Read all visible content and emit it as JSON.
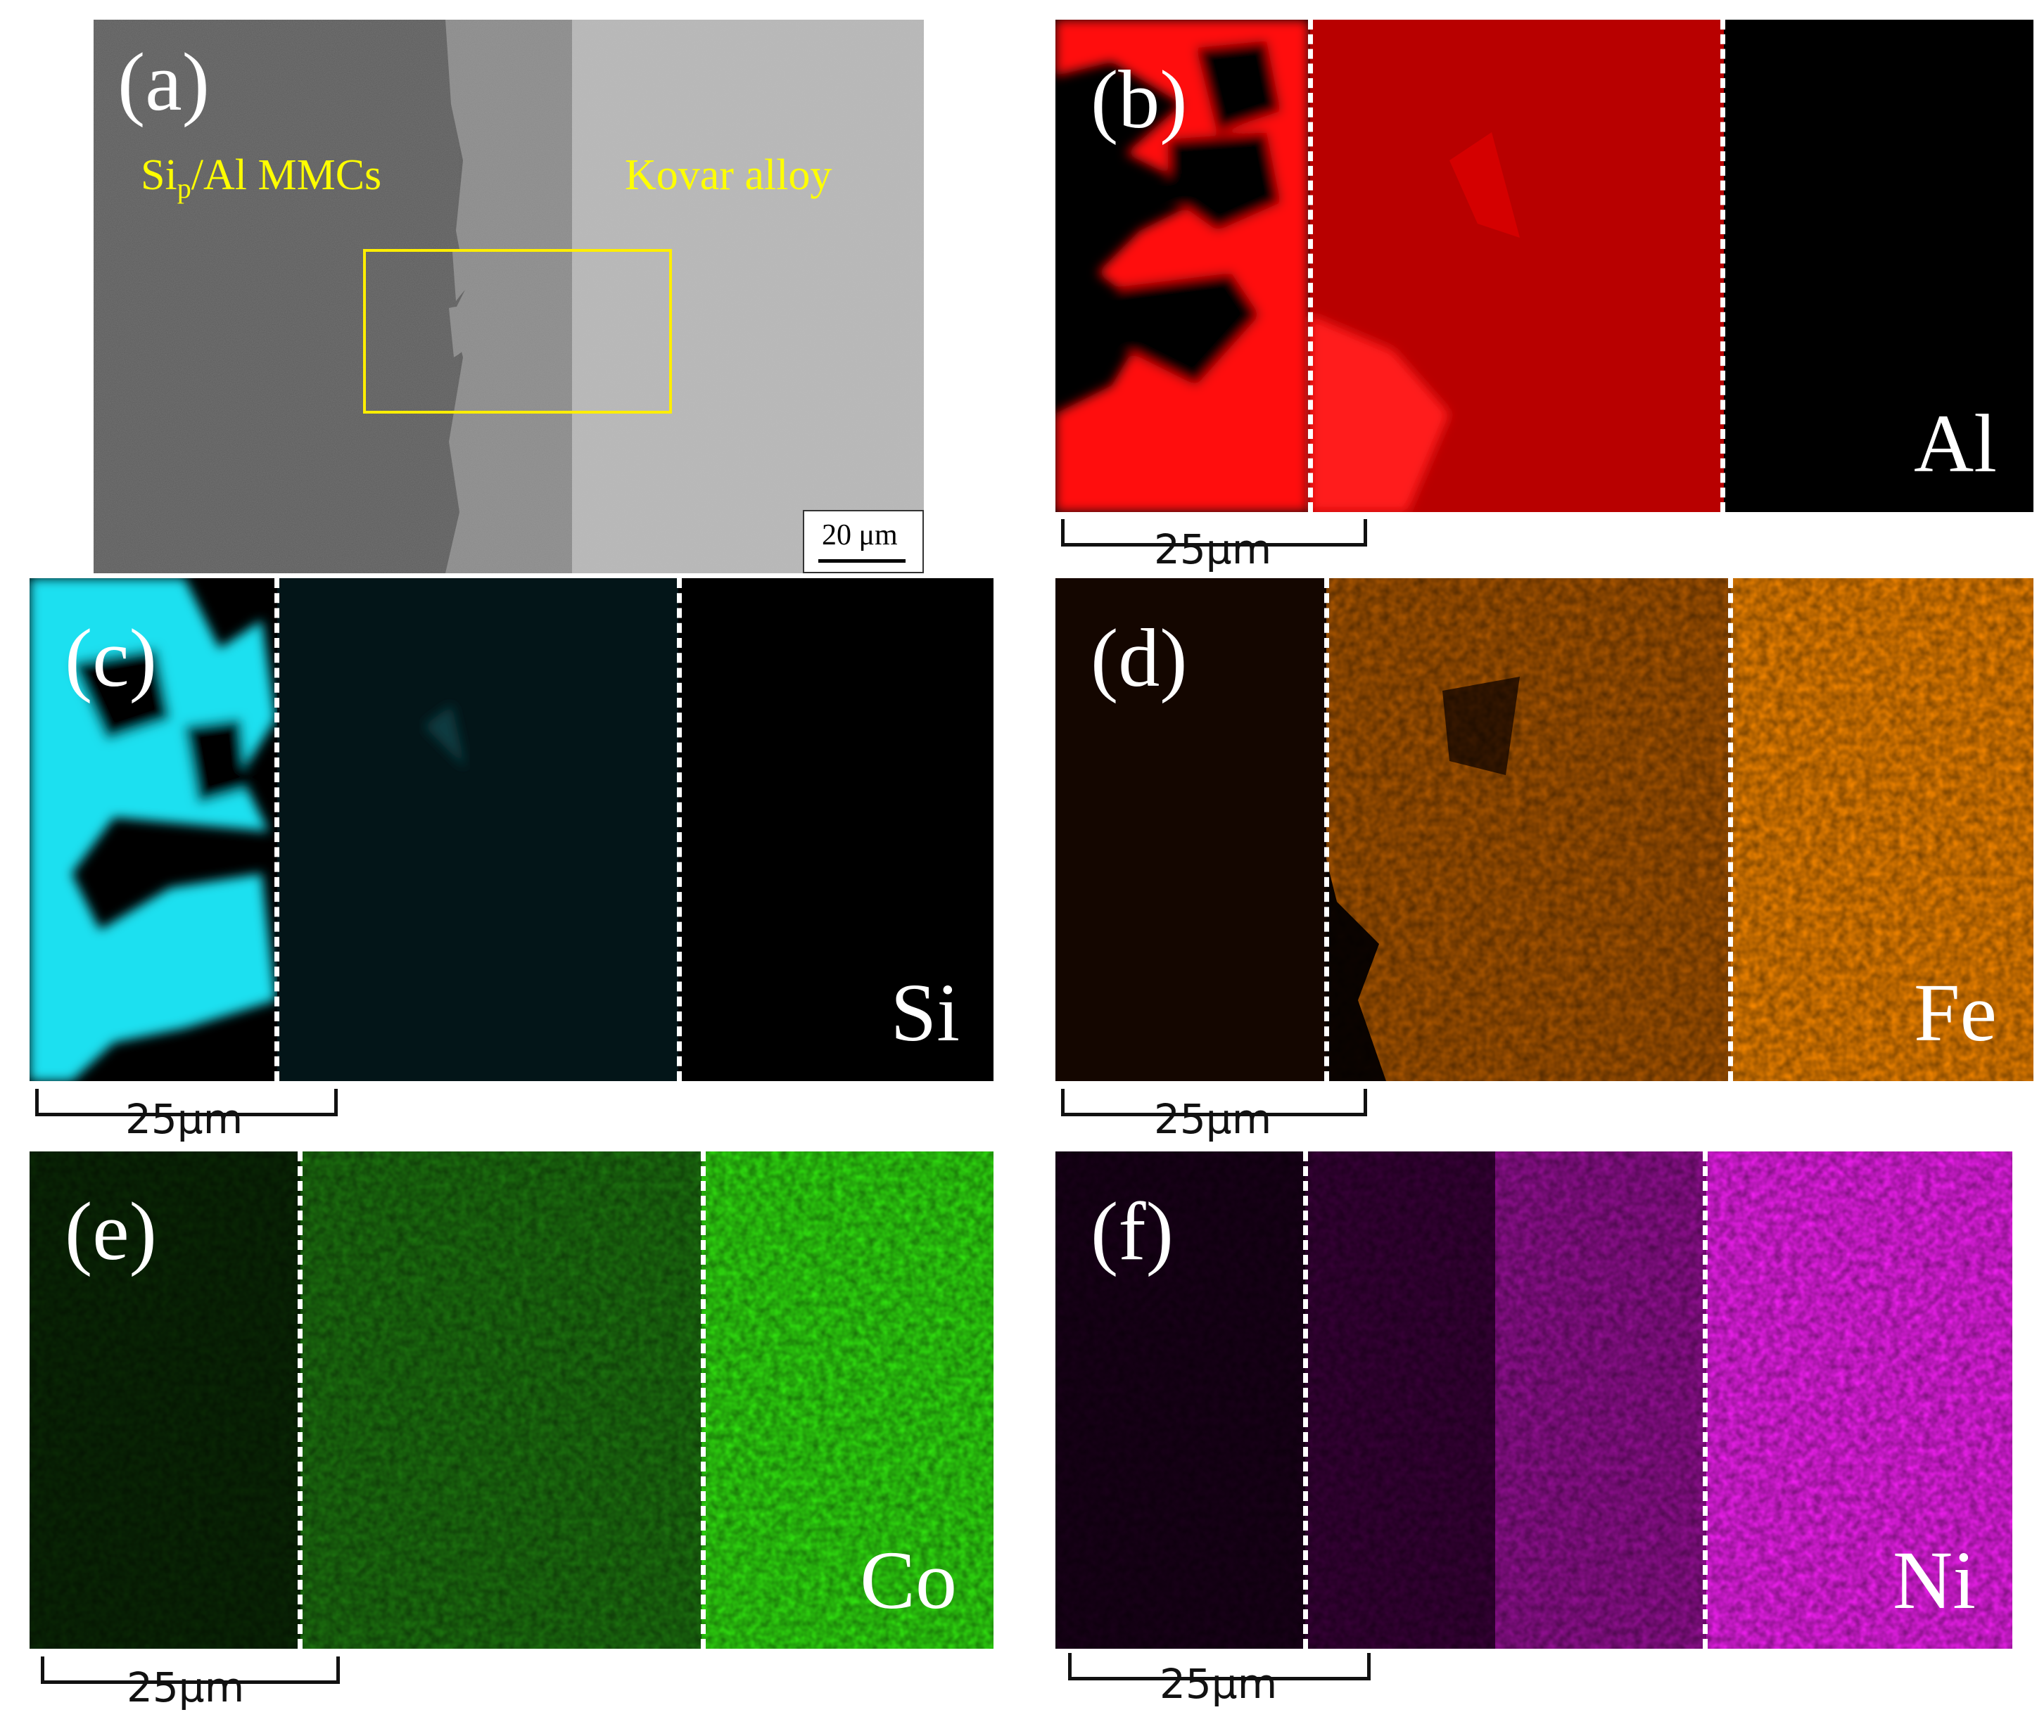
{
  "figure": {
    "panels": [
      {
        "id": "a",
        "label": "(a)",
        "type": "sem",
        "material_left": "Si",
        "material_left_sub": "p",
        "material_left_rest": "/Al MMCs",
        "material_right": "Kovar alloy",
        "scale_text": "20 μm"
      },
      {
        "id": "b",
        "label": "(b)",
        "element": "Al",
        "scale_text": "25μm",
        "color": "#ff0000"
      },
      {
        "id": "c",
        "label": "(c)",
        "element": "Si",
        "scale_text": "25μm",
        "color": "#00e5ff"
      },
      {
        "id": "d",
        "label": "(d)",
        "element": "Fe",
        "scale_text": "25μm",
        "color": "#ff8c00"
      },
      {
        "id": "e",
        "label": "(e)",
        "element": "Co",
        "scale_text": "25μm",
        "color": "#22ee00"
      },
      {
        "id": "f",
        "label": "(f)",
        "element": "Ni",
        "scale_text": "25μm",
        "color": "#ff00ff"
      }
    ]
  }
}
